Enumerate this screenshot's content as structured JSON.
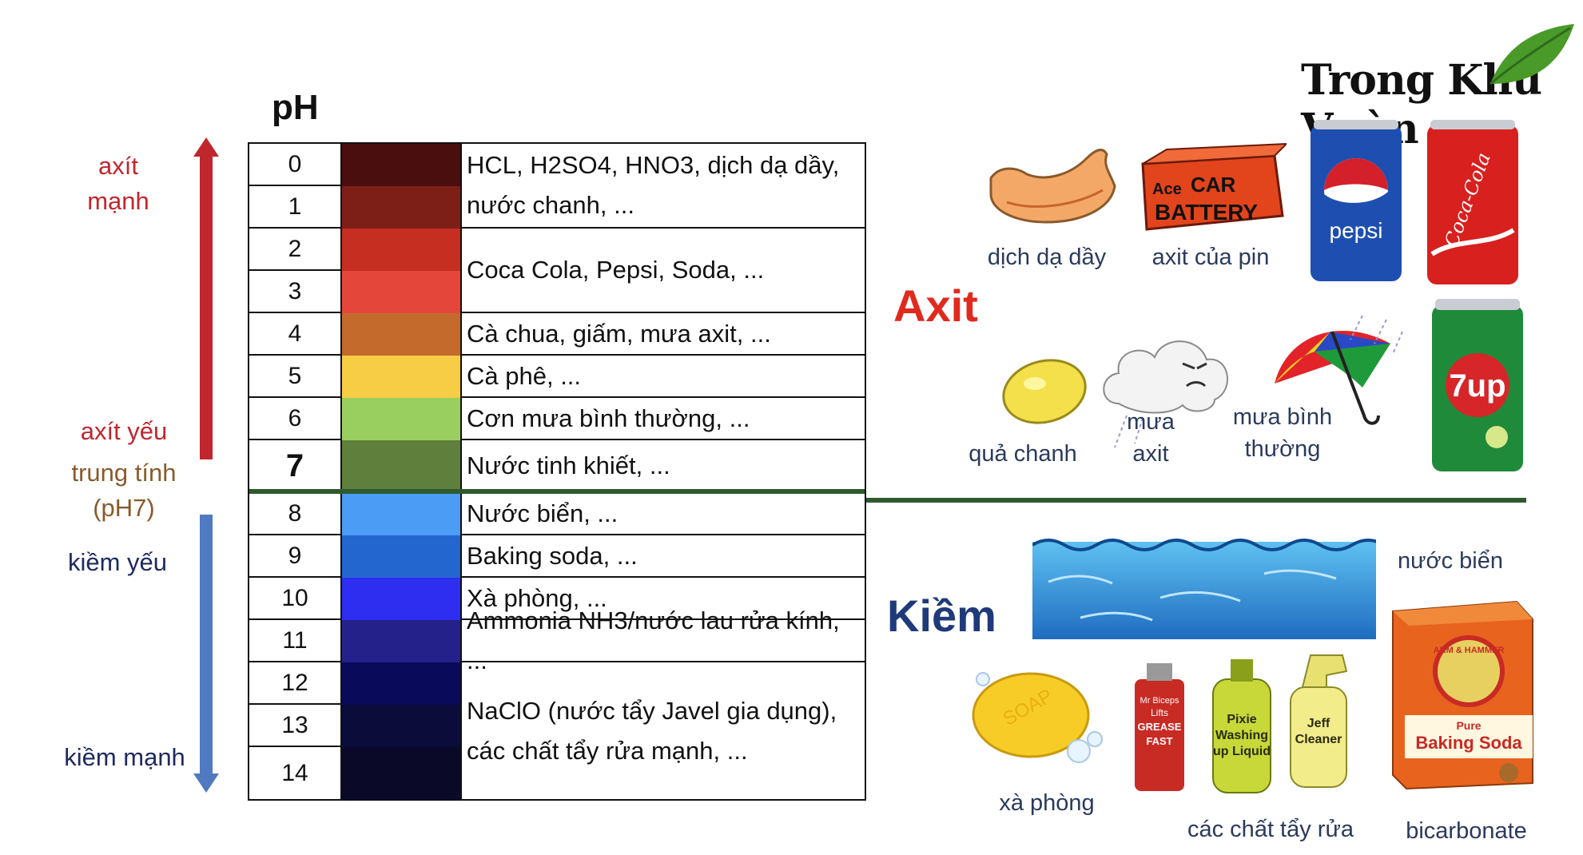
{
  "title": "pH",
  "scale_labels": {
    "strong_acid": [
      "axít",
      "mạnh"
    ],
    "weak_acid": "axít yếu",
    "neutral": [
      "trung tính",
      "(pH7)"
    ],
    "weak_base": "kiềm yếu",
    "strong_base": "kiềm mạnh"
  },
  "ph_scale": [
    {
      "ph": "0",
      "color": "#4a0e0e"
    },
    {
      "ph": "1",
      "color": "#7e1f17"
    },
    {
      "ph": "2",
      "color": "#c62e22"
    },
    {
      "ph": "3",
      "color": "#e4473a"
    },
    {
      "ph": "4",
      "color": "#c46a2c"
    },
    {
      "ph": "5",
      "color": "#f7cd46"
    },
    {
      "ph": "6",
      "color": "#98cf5e"
    },
    {
      "ph": "7",
      "color": "#5f7f3d"
    },
    {
      "ph": "8",
      "color": "#4a9cf5"
    },
    {
      "ph": "9",
      "color": "#2466d0"
    },
    {
      "ph": "10",
      "color": "#2d2ef0"
    },
    {
      "ph": "11",
      "color": "#24228a"
    },
    {
      "ph": "12",
      "color": "#0a0a5a"
    },
    {
      "ph": "13",
      "color": "#0c0c3a"
    },
    {
      "ph": "14",
      "color": "#0a0a28"
    }
  ],
  "descriptions": [
    {
      "lines": [
        "HCL, H2SO4, HNO3, dịch dạ dầy,",
        "nước chanh, ..."
      ]
    },
    {
      "lines": [
        "Coca Cola, Pepsi, Soda, ..."
      ]
    },
    {
      "lines": [
        "Cà chua, giấm, mưa axit, ..."
      ]
    },
    {
      "lines": [
        "Cà phê, ..."
      ]
    },
    {
      "lines": [
        "Cơn mưa bình thường, ..."
      ]
    },
    {
      "lines": [
        "Nước tinh khiết, ..."
      ]
    },
    {
      "lines": [
        "Nước biển, ..."
      ]
    },
    {
      "lines": [
        "Baking soda, ..."
      ]
    },
    {
      "lines": [
        "Xà phòng, ..."
      ]
    },
    {
      "lines": [
        "Ammonia NH3/nước lau rửa kính, ..."
      ]
    },
    {
      "lines": [
        "NaClO (nước tẩy Javel gia dụng),",
        "các chất tẩy rửa mạnh, ..."
      ]
    }
  ],
  "acid": {
    "heading": "Axit",
    "items": {
      "stomach": "dịch dạ dầy",
      "battery": "axit của pin",
      "battery_text": [
        "Ace",
        "CAR",
        "BATTERY"
      ],
      "lemon": "quả chanh",
      "acid_rain": [
        "mưa",
        "axit"
      ],
      "normal_rain": [
        "mưa bình",
        "thường"
      ],
      "pepsi_text": "pepsi",
      "coke_text": "Coca-Cola",
      "sevenup_text": "7up"
    }
  },
  "base": {
    "heading": "Kiềm",
    "items": {
      "sea": "nước biển",
      "soap": "xà phòng",
      "soap_text": "SOAP",
      "cleaners": "các chất tẩy rửa",
      "cleaner1_text": [
        "Mr Biceps",
        "Lifts",
        "GREASE",
        "FAST"
      ],
      "cleaner2_text": [
        "Pixie",
        "Washing",
        "up Liquid"
      ],
      "cleaner3_text": [
        "Jeff",
        "Cleaner"
      ],
      "bicarbonate": "bicarbonate",
      "soda_box_brand": "ARM & HAMMER",
      "soda_box_text": [
        "Pure",
        "Baking Soda"
      ]
    }
  },
  "logo": "Trong Khu Vườn",
  "colors": {
    "acid_red": "#e02a1e",
    "base_blue": "#1f3a7a",
    "divider_green": "#2f5a2f",
    "arrow_red": "#c0272d",
    "arrow_blue": "#4f79c0"
  }
}
